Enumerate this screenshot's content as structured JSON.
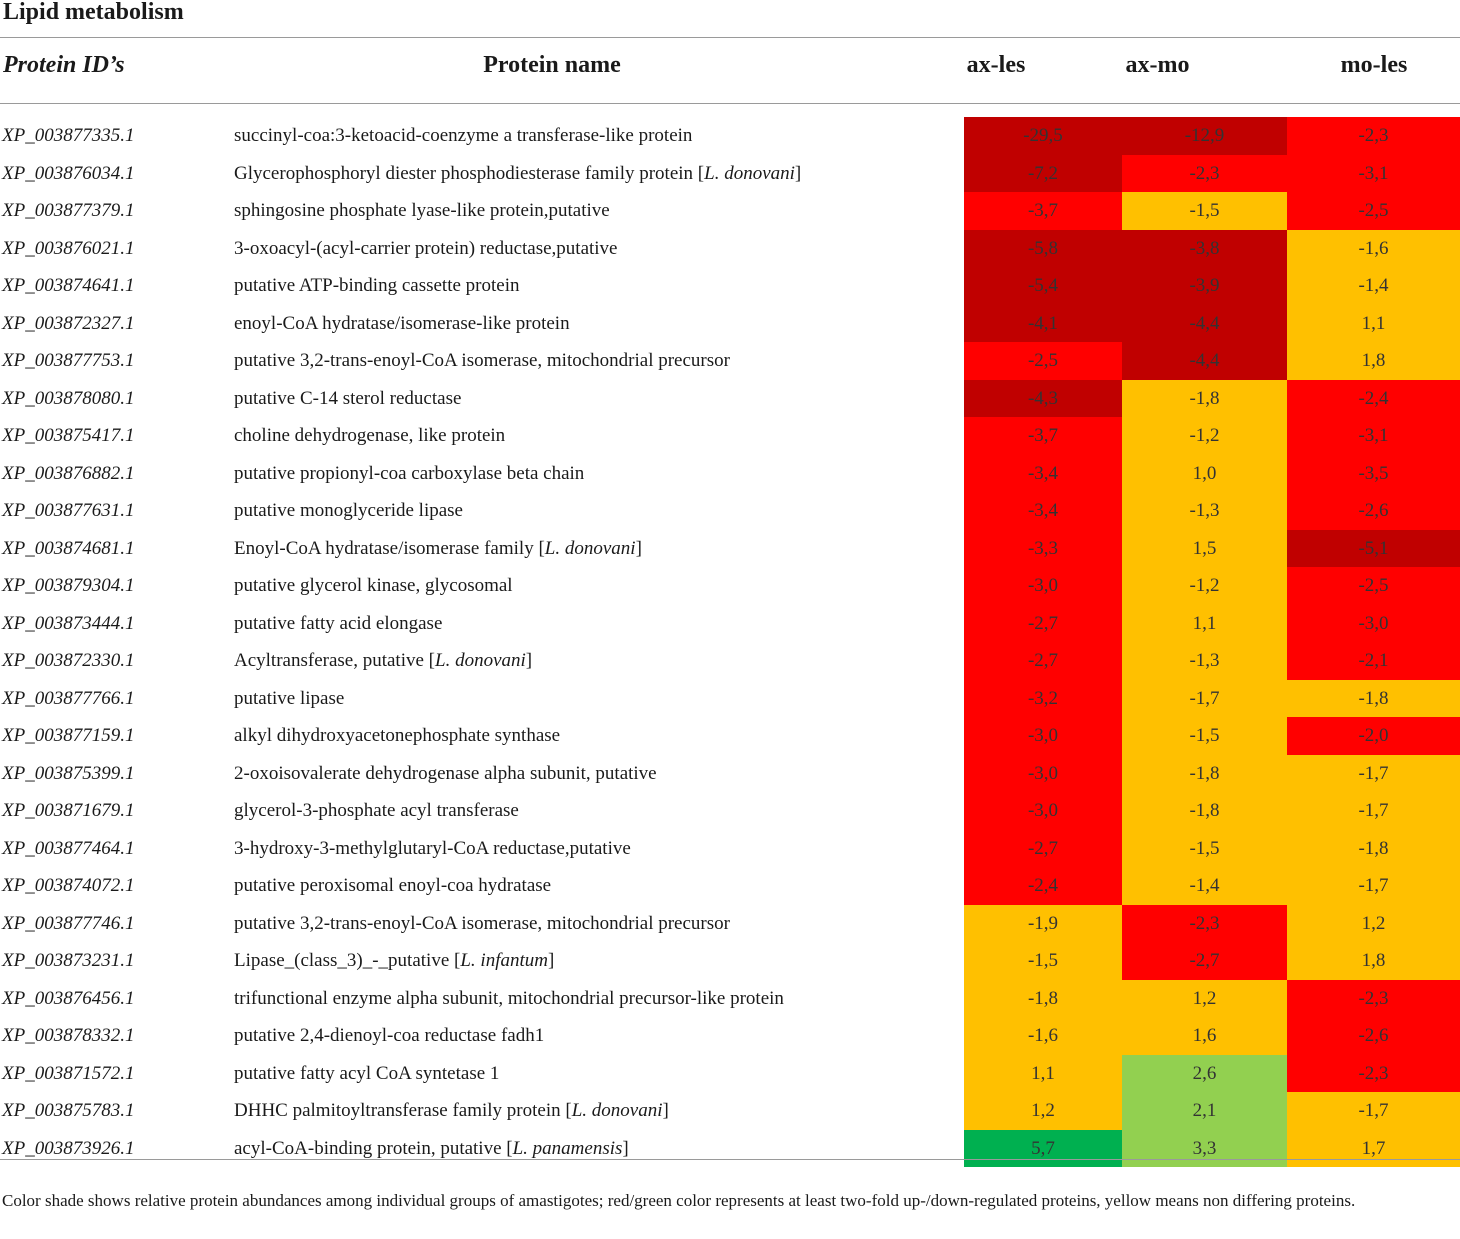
{
  "title": "Lipid metabolism",
  "columns": {
    "protein_id": "Protein ID’s",
    "protein_name": "Protein name",
    "c1": "ax-les",
    "c2": "ax-mo",
    "c3": "mo-les"
  },
  "colors": {
    "dark_red": "#c00000",
    "red": "#ff0000",
    "yellow": "#ffc000",
    "light_green": "#92d050",
    "green": "#00b050"
  },
  "rows": [
    {
      "id": "XP_003877335.1",
      "name": "succinyl-coa:3-ketoacid-coenzyme a transferase-like protein",
      "species": "",
      "v1": "-29,5",
      "v2": "-12,9",
      "v3": "-2,3",
      "c1": "dark_red",
      "c2": "dark_red",
      "c3": "red"
    },
    {
      "id": "XP_003876034.1",
      "name": "Glycerophosphoryl diester phosphodiesterase family protein [",
      "species": "L. donovani",
      "v1": "-7,2",
      "v2": "-2,3",
      "v3": "-3,1",
      "c1": "dark_red",
      "c2": "red",
      "c3": "red"
    },
    {
      "id": "XP_003877379.1",
      "name": "sphingosine phosphate lyase-like protein,putative",
      "species": "",
      "v1": "-3,7",
      "v2": "-1,5",
      "v3": "-2,5",
      "c1": "red",
      "c2": "yellow",
      "c3": "red"
    },
    {
      "id": "XP_003876021.1",
      "name": "3-oxoacyl-(acyl-carrier protein) reductase,putative",
      "species": "",
      "v1": "-5,8",
      "v2": "-3,8",
      "v3": "-1,6",
      "c1": "dark_red",
      "c2": "dark_red",
      "c3": "yellow"
    },
    {
      "id": "XP_003874641.1",
      "name": "putative ATP-binding cassette protein",
      "species": "",
      "v1": "-5,4",
      "v2": "-3,9",
      "v3": "-1,4",
      "c1": "dark_red",
      "c2": "dark_red",
      "c3": "yellow"
    },
    {
      "id": "XP_003872327.1",
      "name": "enoyl-CoA hydratase/isomerase-like protein",
      "species": "",
      "v1": "-4,1",
      "v2": "-4,4",
      "v3": "1,1",
      "c1": "dark_red",
      "c2": "dark_red",
      "c3": "yellow"
    },
    {
      "id": "XP_003877753.1",
      "name": "putative 3,2-trans-enoyl-CoA isomerase, mitochondrial precursor",
      "species": "",
      "v1": "-2,5",
      "v2": "-4,4",
      "v3": "1,8",
      "c1": "red",
      "c2": "dark_red",
      "c3": "yellow"
    },
    {
      "id": "XP_003878080.1",
      "name": "putative C-14 sterol reductase",
      "species": "",
      "v1": "-4,3",
      "v2": "-1,8",
      "v3": "-2,4",
      "c1": "dark_red",
      "c2": "yellow",
      "c3": "red"
    },
    {
      "id": "XP_003875417.1",
      "name": "choline dehydrogenase, like protein",
      "species": "",
      "v1": "-3,7",
      "v2": "-1,2",
      "v3": "-3,1",
      "c1": "red",
      "c2": "yellow",
      "c3": "red"
    },
    {
      "id": "XP_003876882.1",
      "name": "putative propionyl-coa carboxylase beta chain",
      "species": "",
      "v1": "-3,4",
      "v2": "1,0",
      "v3": "-3,5",
      "c1": "red",
      "c2": "yellow",
      "c3": "red"
    },
    {
      "id": "XP_003877631.1",
      "name": "putative monoglyceride lipase",
      "species": "",
      "v1": "-3,4",
      "v2": "-1,3",
      "v3": "-2,6",
      "c1": "red",
      "c2": "yellow",
      "c3": "red"
    },
    {
      "id": "XP_003874681.1",
      "name": "Enoyl-CoA hydratase/isomerase family [",
      "species": "L. donovani",
      "v1": "-3,3",
      "v2": "1,5",
      "v3": "-5,1",
      "c1": "red",
      "c2": "yellow",
      "c3": "dark_red"
    },
    {
      "id": "XP_003879304.1",
      "name": "putative glycerol kinase, glycosomal",
      "species": "",
      "v1": "-3,0",
      "v2": "-1,2",
      "v3": "-2,5",
      "c1": "red",
      "c2": "yellow",
      "c3": "red"
    },
    {
      "id": "XP_003873444.1",
      "name": "putative fatty acid elongase",
      "species": "",
      "v1": "-2,7",
      "v2": "1,1",
      "v3": "-3,0",
      "c1": "red",
      "c2": "yellow",
      "c3": "red"
    },
    {
      "id": "XP_003872330.1",
      "name": "Acyltransferase, putative [",
      "species": "L. donovani",
      "v1": "-2,7",
      "v2": "-1,3",
      "v3": "-2,1",
      "c1": "red",
      "c2": "yellow",
      "c3": "red"
    },
    {
      "id": "XP_003877766.1",
      "name": "putative lipase",
      "species": "",
      "v1": "-3,2",
      "v2": "-1,7",
      "v3": "-1,8",
      "c1": "red",
      "c2": "yellow",
      "c3": "yellow"
    },
    {
      "id": "XP_003877159.1",
      "name": "alkyl dihydroxyacetonephosphate synthase",
      "species": "",
      "v1": "-3,0",
      "v2": "-1,5",
      "v3": "-2,0",
      "c1": "red",
      "c2": "yellow",
      "c3": "red"
    },
    {
      "id": "XP_003875399.1",
      "name": "2-oxoisovalerate dehydrogenase alpha subunit, putative",
      "species": "",
      "v1": "-3,0",
      "v2": "-1,8",
      "v3": "-1,7",
      "c1": "red",
      "c2": "yellow",
      "c3": "yellow"
    },
    {
      "id": "XP_003871679.1",
      "name": "glycerol-3-phosphate acyl transferase",
      "species": "",
      "v1": "-3,0",
      "v2": "-1,8",
      "v3": "-1,7",
      "c1": "red",
      "c2": "yellow",
      "c3": "yellow"
    },
    {
      "id": "XP_003877464.1",
      "name": "3-hydroxy-3-methylglutaryl-CoA reductase,putative",
      "species": "",
      "v1": "-2,7",
      "v2": "-1,5",
      "v3": "-1,8",
      "c1": "red",
      "c2": "yellow",
      "c3": "yellow"
    },
    {
      "id": "XP_003874072.1",
      "name": "putative peroxisomal enoyl-coa hydratase",
      "species": "",
      "v1": "-2,4",
      "v2": "-1,4",
      "v3": "-1,7",
      "c1": "red",
      "c2": "yellow",
      "c3": "yellow"
    },
    {
      "id": "XP_003877746.1",
      "name": "putative 3,2-trans-enoyl-CoA isomerase, mitochondrial precursor",
      "species": "",
      "v1": "-1,9",
      "v2": "-2,3",
      "v3": "1,2",
      "c1": "yellow",
      "c2": "red",
      "c3": "yellow"
    },
    {
      "id": "XP_003873231.1",
      "name": "Lipase_(class_3)_-_putative [",
      "species": "L. infantum",
      "v1": "-1,5",
      "v2": "-2,7",
      "v3": "1,8",
      "c1": "yellow",
      "c2": "red",
      "c3": "yellow"
    },
    {
      "id": "XP_003876456.1",
      "name": "trifunctional enzyme alpha subunit, mitochondrial precursor-like protein",
      "species": "",
      "v1": "-1,8",
      "v2": "1,2",
      "v3": "-2,3",
      "c1": "yellow",
      "c2": "yellow",
      "c3": "red"
    },
    {
      "id": "XP_003878332.1",
      "name": "putative 2,4-dienoyl-coa reductase fadh1",
      "species": "",
      "v1": "-1,6",
      "v2": "1,6",
      "v3": "-2,6",
      "c1": "yellow",
      "c2": "yellow",
      "c3": "red"
    },
    {
      "id": "XP_003871572.1",
      "name": "putative fatty acyl CoA syntetase 1",
      "species": "",
      "v1": "1,1",
      "v2": "2,6",
      "v3": "-2,3",
      "c1": "yellow",
      "c2": "light_green",
      "c3": "red"
    },
    {
      "id": "XP_003875783.1",
      "name": "DHHC palmitoyltransferase family protein [",
      "species": "L. donovani",
      "v1": "1,2",
      "v2": "2,1",
      "v3": "-1,7",
      "c1": "yellow",
      "c2": "light_green",
      "c3": "yellow"
    },
    {
      "id": "XP_003873926.1",
      "name": "acyl-CoA-binding protein, putative [",
      "species": "L. panamensis",
      "v1": "5,7",
      "v2": "3,3",
      "v3": "1,7",
      "c1": "green",
      "c2": "light_green",
      "c3": "yellow"
    }
  ],
  "footnote": "Color shade shows relative protein abundances among individual groups of amastigotes; red/green color represents at least two-fold up-/down-regulated proteins, yellow means non differing proteins."
}
